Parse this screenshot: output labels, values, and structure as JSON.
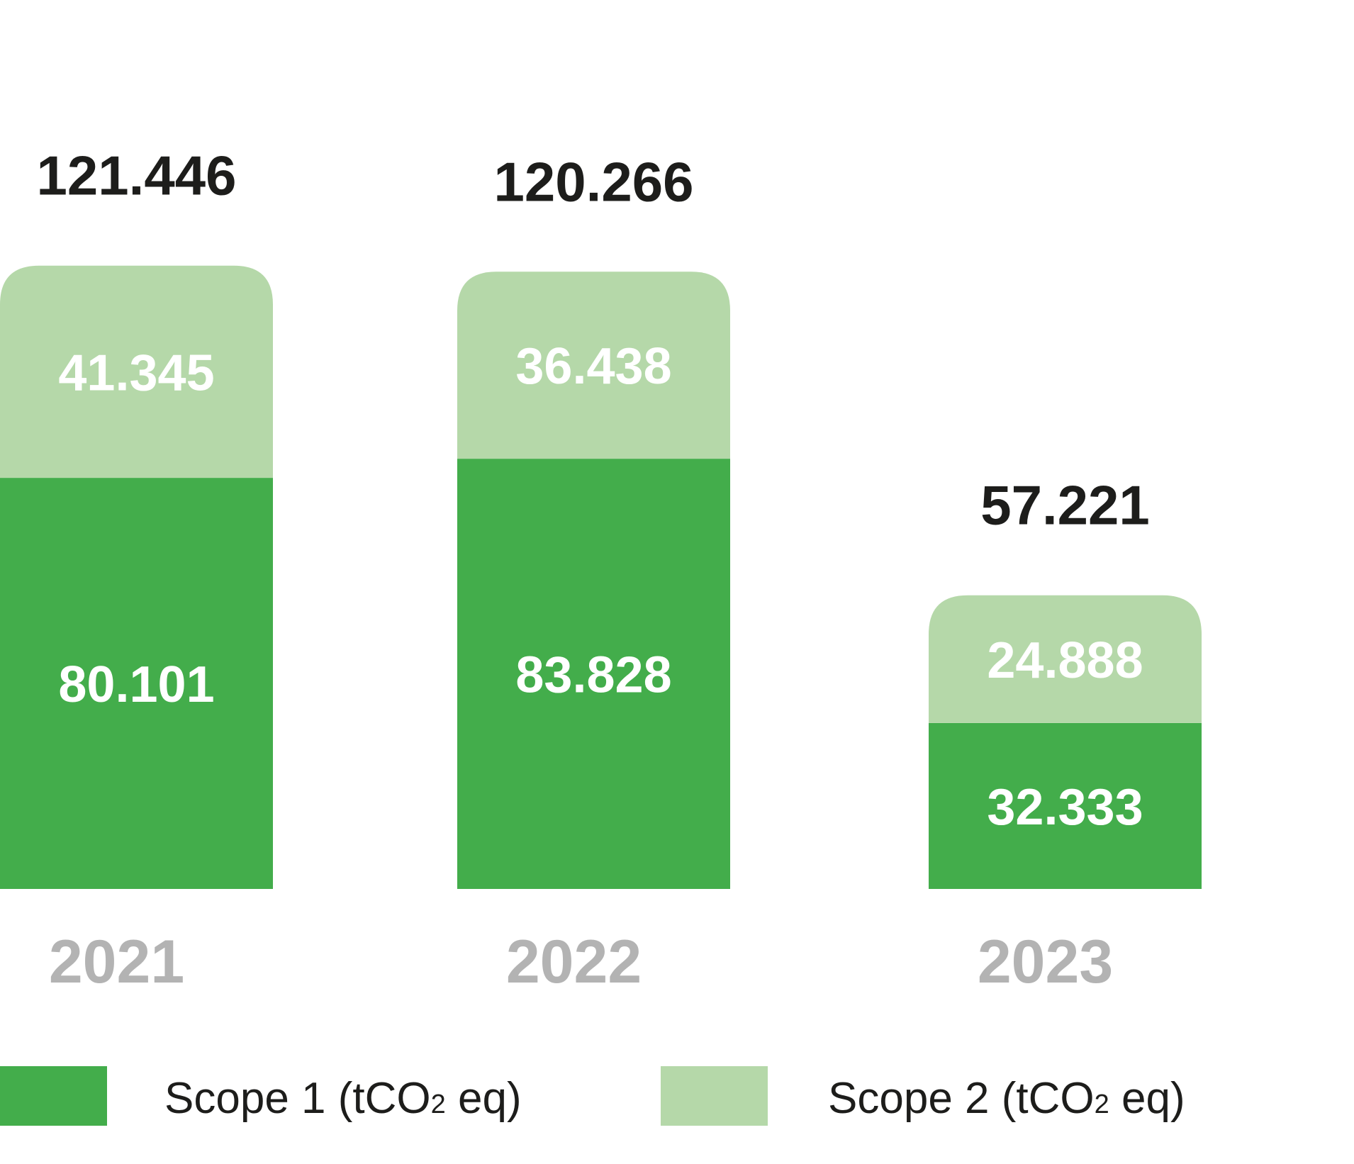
{
  "colors": {
    "scope1": "#43ad4b",
    "scope2": "#b5d8a9",
    "total_text": "#1d1d1b",
    "year_text": "#b3b3b3",
    "segment_text": "#ffffff"
  },
  "chart_data": {
    "type": "bar",
    "stacked": true,
    "categories": [
      "2021",
      "2022",
      "2023"
    ],
    "series": [
      {
        "name": "Scope 1 (tCO2 eq)",
        "values": [
          80.101,
          83.828,
          32.333
        ],
        "labels": [
          "80.101",
          "83.828",
          "32.333"
        ]
      },
      {
        "name": "Scope 2 (tCO2 eq)",
        "values": [
          41.345,
          36.438,
          24.888
        ],
        "labels": [
          "41.345",
          "36.438",
          "24.888"
        ]
      }
    ],
    "totals": [
      121.446,
      120.266,
      57.221
    ],
    "total_labels": [
      "121.446",
      "120.266",
      "57.221"
    ],
    "grid": false,
    "axes_visible": false,
    "legend_position": "bottom"
  },
  "legend": {
    "scope1": {
      "prefix": "Scope 1 (tCO",
      "sub": "2",
      "suffix": " eq)"
    },
    "scope2": {
      "prefix": "Scope 2 (tCO",
      "sub": "2",
      "suffix": " eq)"
    }
  }
}
